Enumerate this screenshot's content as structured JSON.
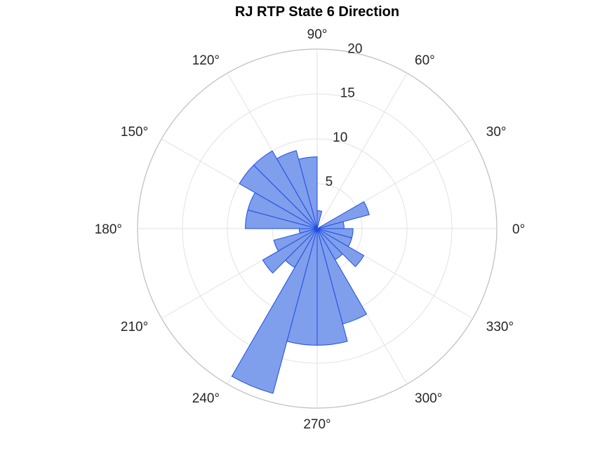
{
  "chart_data": {
    "type": "polar-histogram",
    "title": "RJ  RTP State 6 Direction",
    "angle_ticks": [
      {
        "angle": 0,
        "label": "0°"
      },
      {
        "angle": 30,
        "label": "30°"
      },
      {
        "angle": 60,
        "label": "60°"
      },
      {
        "angle": 90,
        "label": "90°"
      },
      {
        "angle": 120,
        "label": "120°"
      },
      {
        "angle": 150,
        "label": "150°"
      },
      {
        "angle": 180,
        "label": "180°"
      },
      {
        "angle": 210,
        "label": "210°"
      },
      {
        "angle": 240,
        "label": "240°"
      },
      {
        "angle": 270,
        "label": "270°"
      },
      {
        "angle": 300,
        "label": "300°"
      },
      {
        "angle": 330,
        "label": "330°"
      }
    ],
    "radial_ticks": [
      5,
      10,
      15,
      20
    ],
    "rlim": [
      0,
      20
    ],
    "bin_width_deg": 15,
    "bins_start_deg": [
      0,
      15,
      30,
      45,
      60,
      75,
      90,
      105,
      120,
      135,
      150,
      165,
      180,
      195,
      210,
      225,
      240,
      255,
      270,
      285,
      300,
      315,
      330,
      345
    ],
    "counts": [
      3,
      6,
      0,
      0,
      0,
      2,
      8,
      9,
      10,
      10,
      8,
      8,
      2,
      5,
      7,
      5,
      19,
      13,
      13,
      11,
      4,
      6,
      4,
      4
    ],
    "face_color": "#7f9eec",
    "edge_color": "#1f4fe3",
    "grid": true
  }
}
